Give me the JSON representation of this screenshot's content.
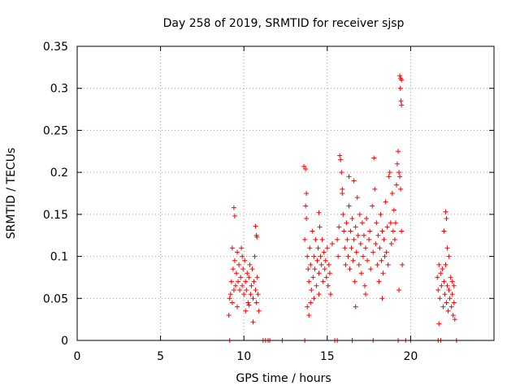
{
  "chart_data": {
    "type": "scatter",
    "title": "Day 258 of 2019, SRMTID for receiver sjsp",
    "xlabel": "GPS time / hours",
    "ylabel": "SRMTID / TECUs",
    "xlim": [
      0,
      25
    ],
    "ylim": [
      0,
      0.35
    ],
    "grid": true,
    "marker": "plus",
    "color": "#ff0000",
    "x_ticks": [
      0,
      5,
      10,
      15,
      20
    ],
    "x_tick_labels": [
      "0",
      "5",
      "10",
      "15",
      "20"
    ],
    "y_ticks": [
      0,
      0.05,
      0.1,
      0.15,
      0.2,
      0.25,
      0.3,
      0.35
    ],
    "y_tick_labels": [
      "0",
      "0.05",
      "0.1",
      "0.15",
      "0.2",
      "0.25",
      "0.3",
      "0.35"
    ],
    "series": [
      {
        "name": "SRMTID",
        "points": [
          [
            9.1,
            0.03
          ],
          [
            9.15,
            0.05
          ],
          [
            9.2,
            0.055
          ],
          [
            9.25,
            0.07
          ],
          [
            9.3,
            0.045
          ],
          [
            9.35,
            0.085
          ],
          [
            9.4,
            0.06
          ],
          [
            9.45,
            0.095
          ],
          [
            9.5,
            0.065
          ],
          [
            9.55,
            0.08
          ],
          [
            9.6,
            0.105
          ],
          [
            9.65,
            0.07
          ],
          [
            9.7,
            0.09
          ],
          [
            9.75,
            0.06
          ],
          [
            9.8,
            0.075
          ],
          [
            9.85,
            0.11
          ],
          [
            9.9,
            0.065
          ],
          [
            9.95,
            0.085
          ],
          [
            10.0,
            0.055
          ],
          [
            10.05,
            0.095
          ],
          [
            10.1,
            0.07
          ],
          [
            10.15,
            0.06
          ],
          [
            10.2,
            0.08
          ],
          [
            10.25,
            0.045
          ],
          [
            10.3,
            0.075
          ],
          [
            10.35,
            0.09
          ],
          [
            10.4,
            0.055
          ],
          [
            10.45,
            0.065
          ],
          [
            10.5,
            0.085
          ],
          [
            10.55,
            0.05
          ],
          [
            10.6,
            0.07
          ],
          [
            10.65,
            0.1
          ],
          [
            10.7,
            0.06
          ],
          [
            10.75,
            0.045
          ],
          [
            10.8,
            0.075
          ],
          [
            10.85,
            0.055
          ],
          [
            10.9,
            0.035
          ],
          [
            9.4,
            0.158
          ],
          [
            9.45,
            0.148
          ],
          [
            10.7,
            0.136
          ],
          [
            10.75,
            0.125
          ],
          [
            10.78,
            0.123
          ],
          [
            9.3,
            0.11
          ],
          [
            9.9,
            0.1
          ],
          [
            10.3,
            0.042
          ],
          [
            10.55,
            0.022
          ],
          [
            9.6,
            0.04
          ],
          [
            10.1,
            0.035
          ],
          [
            13.6,
            0.207
          ],
          [
            13.7,
            0.204
          ],
          [
            13.7,
            0.16
          ],
          [
            13.75,
            0.145
          ],
          [
            13.65,
            0.12
          ],
          [
            13.8,
            0.1
          ],
          [
            13.85,
            0.085
          ],
          [
            13.9,
            0.07
          ],
          [
            13.95,
            0.11
          ],
          [
            14.0,
            0.09
          ],
          [
            14.05,
            0.06
          ],
          [
            14.1,
            0.13
          ],
          [
            14.15,
            0.075
          ],
          [
            14.2,
            0.1
          ],
          [
            14.25,
            0.085
          ],
          [
            14.3,
            0.12
          ],
          [
            14.35,
            0.065
          ],
          [
            14.4,
            0.095
          ],
          [
            14.45,
            0.11
          ],
          [
            14.5,
            0.08
          ],
          [
            14.55,
            0.135
          ],
          [
            14.6,
            0.1
          ],
          [
            14.65,
            0.09
          ],
          [
            14.7,
            0.12
          ],
          [
            14.75,
            0.07
          ],
          [
            14.8,
            0.105
          ],
          [
            14.85,
            0.085
          ],
          [
            14.9,
            0.095
          ],
          [
            14.95,
            0.075
          ],
          [
            15.0,
            0.11
          ],
          [
            15.05,
            0.065
          ],
          [
            15.1,
            0.09
          ],
          [
            15.15,
            0.08
          ],
          [
            15.2,
            0.055
          ],
          [
            13.8,
            0.04
          ],
          [
            13.9,
            0.03
          ],
          [
            14.0,
            0.045
          ],
          [
            14.2,
            0.05
          ],
          [
            14.5,
            0.055
          ],
          [
            15.3,
            0.115
          ],
          [
            13.75,
            0.175
          ],
          [
            14.5,
            0.152
          ],
          [
            15.6,
            0.12
          ],
          [
            15.65,
            0.1
          ],
          [
            15.7,
            0.135
          ],
          [
            15.75,
            0.22
          ],
          [
            15.8,
            0.215
          ],
          [
            15.85,
            0.2
          ],
          [
            15.9,
            0.175
          ],
          [
            15.95,
            0.15
          ],
          [
            16.0,
            0.13
          ],
          [
            16.05,
            0.11
          ],
          [
            16.1,
            0.09
          ],
          [
            16.15,
            0.14
          ],
          [
            16.2,
            0.12
          ],
          [
            16.25,
            0.1
          ],
          [
            16.3,
            0.16
          ],
          [
            16.35,
            0.085
          ],
          [
            16.4,
            0.13
          ],
          [
            16.45,
            0.11
          ],
          [
            16.5,
            0.145
          ],
          [
            16.55,
            0.095
          ],
          [
            16.6,
            0.12
          ],
          [
            16.65,
            0.07
          ],
          [
            16.7,
            0.135
          ],
          [
            16.75,
            0.105
          ],
          [
            16.8,
            0.17
          ],
          [
            16.85,
            0.125
          ],
          [
            16.9,
            0.09
          ],
          [
            16.95,
            0.15
          ],
          [
            17.0,
            0.115
          ],
          [
            17.05,
            0.08
          ],
          [
            17.1,
            0.14
          ],
          [
            17.15,
            0.1
          ],
          [
            17.2,
            0.125
          ],
          [
            17.25,
            0.065
          ],
          [
            17.3,
            0.11
          ],
          [
            17.35,
            0.145
          ],
          [
            17.4,
            0.095
          ],
          [
            17.5,
            0.12
          ],
          [
            17.55,
            0.13
          ],
          [
            17.6,
            0.085
          ],
          [
            17.7,
            0.16
          ],
          [
            17.75,
            0.105
          ],
          [
            17.8,
            0.217
          ],
          [
            17.85,
            0.18
          ],
          [
            17.9,
            0.115
          ],
          [
            17.95,
            0.14
          ],
          [
            18.0,
            0.09
          ],
          [
            18.05,
            0.125
          ],
          [
            18.1,
            0.07
          ],
          [
            18.15,
            0.11
          ],
          [
            18.2,
            0.15
          ],
          [
            18.25,
            0.095
          ],
          [
            18.3,
            0.13
          ],
          [
            18.35,
            0.08
          ],
          [
            18.4,
            0.12
          ],
          [
            18.45,
            0.1
          ],
          [
            18.5,
            0.165
          ],
          [
            18.55,
            0.105
          ],
          [
            18.6,
            0.135
          ],
          [
            18.65,
            0.09
          ],
          [
            18.7,
            0.195
          ],
          [
            18.75,
            0.2
          ],
          [
            18.8,
            0.14
          ],
          [
            18.85,
            0.115
          ],
          [
            18.9,
            0.175
          ],
          [
            18.95,
            0.13
          ],
          [
            19.0,
            0.155
          ],
          [
            19.05,
            0.12
          ],
          [
            19.1,
            0.14
          ],
          [
            19.15,
            0.185
          ],
          [
            19.2,
            0.21
          ],
          [
            19.25,
            0.225
          ],
          [
            19.3,
            0.2
          ],
          [
            19.35,
            0.195
          ],
          [
            19.4,
            0.18
          ],
          [
            19.45,
            0.13
          ],
          [
            19.5,
            0.09
          ],
          [
            16.7,
            0.04
          ],
          [
            17.3,
            0.055
          ],
          [
            18.3,
            0.05
          ],
          [
            19.3,
            0.06
          ],
          [
            19.35,
            0.315
          ],
          [
            19.4,
            0.312
          ],
          [
            19.45,
            0.31
          ],
          [
            19.38,
            0.3
          ],
          [
            19.42,
            0.285
          ],
          [
            19.45,
            0.28
          ],
          [
            15.9,
            0.18
          ],
          [
            16.6,
            0.19
          ],
          [
            16.3,
            0.195
          ],
          [
            21.6,
            0.075
          ],
          [
            21.65,
            0.06
          ],
          [
            21.7,
            0.09
          ],
          [
            21.75,
            0.05
          ],
          [
            21.8,
            0.08
          ],
          [
            21.85,
            0.065
          ],
          [
            21.9,
            0.085
          ],
          [
            21.95,
            0.04
          ],
          [
            22.0,
            0.07
          ],
          [
            22.05,
            0.055
          ],
          [
            22.1,
            0.09
          ],
          [
            22.15,
            0.045
          ],
          [
            22.2,
            0.065
          ],
          [
            22.25,
            0.035
          ],
          [
            22.3,
            0.06
          ],
          [
            22.35,
            0.05
          ],
          [
            22.4,
            0.075
          ],
          [
            22.45,
            0.04
          ],
          [
            22.5,
            0.055
          ],
          [
            22.55,
            0.03
          ],
          [
            22.6,
            0.045
          ],
          [
            22.65,
            0.025
          ],
          [
            22.1,
            0.153
          ],
          [
            22.15,
            0.145
          ],
          [
            22.2,
            0.11
          ],
          [
            22.0,
            0.13
          ],
          [
            21.7,
            0.02
          ],
          [
            22.3,
            0.1
          ],
          [
            22.5,
            0.07
          ],
          [
            22.6,
            0.065
          ],
          [
            9.15,
            0.0
          ],
          [
            11.15,
            0.0
          ],
          [
            11.3,
            0.0
          ],
          [
            11.45,
            0.0
          ],
          [
            11.55,
            0.0
          ],
          [
            12.3,
            0.0
          ],
          [
            13.65,
            0.0
          ],
          [
            15.45,
            0.0
          ],
          [
            15.6,
            0.0
          ],
          [
            16.5,
            0.0
          ],
          [
            17.75,
            0.0
          ],
          [
            19.25,
            0.0
          ],
          [
            19.7,
            0.0
          ],
          [
            20.0,
            0.0
          ],
          [
            21.65,
            0.0
          ],
          [
            21.8,
            0.0
          ],
          [
            22.75,
            0.0
          ]
        ]
      }
    ]
  }
}
